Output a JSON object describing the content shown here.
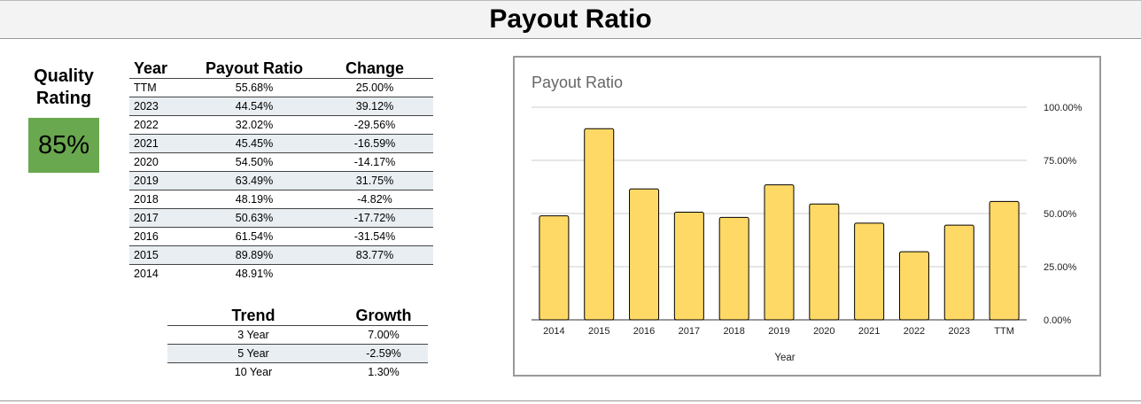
{
  "page": {
    "title": "Payout Ratio"
  },
  "quality": {
    "label_line1": "Quality",
    "label_line2": "Rating",
    "value": "85%",
    "color": "#6aa84f"
  },
  "history_table": {
    "headers": {
      "year": "Year",
      "ratio": "Payout Ratio",
      "change": "Change"
    },
    "rows": [
      {
        "year": "TTM",
        "ratio": "55.68%",
        "change": "25.00%"
      },
      {
        "year": "2023",
        "ratio": "44.54%",
        "change": "39.12%"
      },
      {
        "year": "2022",
        "ratio": "32.02%",
        "change": "-29.56%"
      },
      {
        "year": "2021",
        "ratio": "45.45%",
        "change": "-16.59%"
      },
      {
        "year": "2020",
        "ratio": "54.50%",
        "change": "-14.17%"
      },
      {
        "year": "2019",
        "ratio": "63.49%",
        "change": "31.75%"
      },
      {
        "year": "2018",
        "ratio": "48.19%",
        "change": "-4.82%"
      },
      {
        "year": "2017",
        "ratio": "50.63%",
        "change": "-17.72%"
      },
      {
        "year": "2016",
        "ratio": "61.54%",
        "change": "-31.54%"
      },
      {
        "year": "2015",
        "ratio": "89.89%",
        "change": "83.77%"
      },
      {
        "year": "2014",
        "ratio": "48.91%",
        "change": ""
      }
    ]
  },
  "trend_table": {
    "headers": {
      "trend": "Trend",
      "growth": "Growth"
    },
    "rows": [
      {
        "trend": "3 Year",
        "growth": "7.00%"
      },
      {
        "trend": "5 Year",
        "growth": "-2.59%"
      },
      {
        "trend": "10 Year",
        "growth": "1.30%"
      }
    ]
  },
  "chart_data": {
    "type": "bar",
    "title": "Payout Ratio",
    "xlabel": "Year",
    "ylabel": "",
    "categories": [
      "2014",
      "2015",
      "2016",
      "2017",
      "2018",
      "2019",
      "2020",
      "2021",
      "2022",
      "2023",
      "TTM"
    ],
    "values": [
      48.91,
      89.89,
      61.54,
      50.63,
      48.19,
      63.49,
      54.5,
      45.45,
      32.02,
      44.54,
      55.68
    ],
    "ylim": [
      0,
      100
    ],
    "yticks": [
      0,
      25,
      50,
      75,
      100
    ],
    "ytick_labels": [
      "0.00%",
      "25.00%",
      "50.00%",
      "75.00%",
      "100.00%"
    ],
    "y_axis_position": "right",
    "grid": true,
    "legend": "none",
    "bar_color": "#ffd966",
    "bar_edge_color": "#000000"
  }
}
